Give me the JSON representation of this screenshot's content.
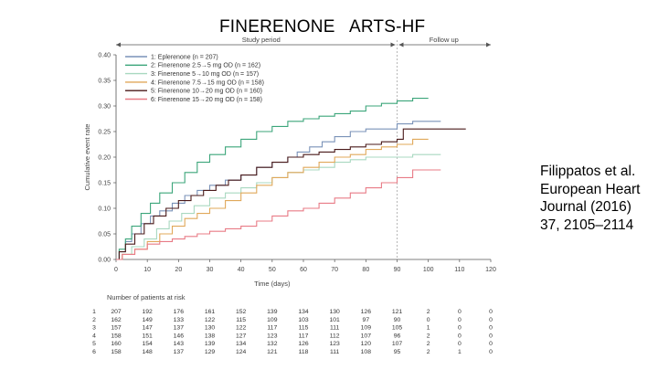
{
  "slide": {
    "title": "FINERENONE   ARTS-HF",
    "citation": [
      "Filippatos et al.",
      "European Heart",
      "Journal (2016)",
      "37, 2105–2114"
    ]
  },
  "chart_data": {
    "type": "line",
    "step": true,
    "title": "",
    "xlabel": "Time (days)",
    "ylabel": "Cumulative event rate",
    "xlim": [
      0,
      120
    ],
    "ylim": [
      0,
      0.4
    ],
    "xticks": [
      0,
      10,
      20,
      30,
      40,
      50,
      60,
      70,
      80,
      90,
      100,
      110,
      120
    ],
    "yticks": [
      "0.00",
      "0.05",
      "0.10",
      "0.15",
      "0.20",
      "0.25",
      "0.30",
      "0.35",
      "0.40"
    ],
    "periods": {
      "study": "Study period",
      "follow": "Follow up",
      "boundary_day": 90
    },
    "series": [
      {
        "name": "1: Eplerenone (n = 207)",
        "color": "#7a92b8",
        "points": [
          [
            0,
            0
          ],
          [
            1,
            0.015
          ],
          [
            3,
            0.035
          ],
          [
            5,
            0.05
          ],
          [
            8,
            0.07
          ],
          [
            11,
            0.085
          ],
          [
            14,
            0.095
          ],
          [
            18,
            0.11
          ],
          [
            22,
            0.125
          ],
          [
            26,
            0.135
          ],
          [
            30,
            0.145
          ],
          [
            35,
            0.155
          ],
          [
            40,
            0.165
          ],
          [
            45,
            0.18
          ],
          [
            50,
            0.19
          ],
          [
            55,
            0.2
          ],
          [
            58,
            0.21
          ],
          [
            62,
            0.22
          ],
          [
            66,
            0.23
          ],
          [
            70,
            0.24
          ],
          [
            75,
            0.25
          ],
          [
            80,
            0.255
          ],
          [
            85,
            0.255
          ],
          [
            90,
            0.265
          ],
          [
            95,
            0.27
          ],
          [
            104,
            0.27
          ]
        ]
      },
      {
        "name": "2: Finerenone 2.5→5 mg OD (n = 162)",
        "color": "#3ba57a",
        "points": [
          [
            0,
            0
          ],
          [
            1,
            0.02
          ],
          [
            3,
            0.04
          ],
          [
            5,
            0.065
          ],
          [
            8,
            0.09
          ],
          [
            11,
            0.11
          ],
          [
            14,
            0.13
          ],
          [
            18,
            0.15
          ],
          [
            22,
            0.17
          ],
          [
            26,
            0.19
          ],
          [
            30,
            0.205
          ],
          [
            35,
            0.22
          ],
          [
            40,
            0.235
          ],
          [
            45,
            0.25
          ],
          [
            50,
            0.26
          ],
          [
            55,
            0.27
          ],
          [
            60,
            0.275
          ],
          [
            65,
            0.28
          ],
          [
            70,
            0.285
          ],
          [
            75,
            0.29
          ],
          [
            80,
            0.3
          ],
          [
            85,
            0.305
          ],
          [
            90,
            0.31
          ],
          [
            95,
            0.315
          ],
          [
            100,
            0.315
          ]
        ]
      },
      {
        "name": "3: Finerenone 5→10 mg OD (n = 157)",
        "color": "#a8d8c0",
        "points": [
          [
            0,
            0
          ],
          [
            2,
            0.01
          ],
          [
            5,
            0.025
          ],
          [
            9,
            0.04
          ],
          [
            13,
            0.06
          ],
          [
            17,
            0.075
          ],
          [
            21,
            0.09
          ],
          [
            25,
            0.105
          ],
          [
            30,
            0.12
          ],
          [
            35,
            0.13
          ],
          [
            40,
            0.14
          ],
          [
            45,
            0.15
          ],
          [
            50,
            0.16
          ],
          [
            55,
            0.17
          ],
          [
            60,
            0.175
          ],
          [
            65,
            0.18
          ],
          [
            70,
            0.19
          ],
          [
            75,
            0.195
          ],
          [
            80,
            0.2
          ],
          [
            85,
            0.2
          ],
          [
            90,
            0.2
          ],
          [
            95,
            0.205
          ],
          [
            104,
            0.205
          ]
        ]
      },
      {
        "name": "4: Finerenone 7.5→15 mg OD (n = 158)",
        "color": "#e0a85a",
        "points": [
          [
            0,
            0
          ],
          [
            2,
            0.01
          ],
          [
            6,
            0.02
          ],
          [
            10,
            0.035
          ],
          [
            14,
            0.05
          ],
          [
            18,
            0.065
          ],
          [
            22,
            0.08
          ],
          [
            26,
            0.09
          ],
          [
            30,
            0.1
          ],
          [
            35,
            0.115
          ],
          [
            40,
            0.13
          ],
          [
            45,
            0.145
          ],
          [
            50,
            0.16
          ],
          [
            55,
            0.17
          ],
          [
            60,
            0.18
          ],
          [
            65,
            0.19
          ],
          [
            70,
            0.2
          ],
          [
            75,
            0.205
          ],
          [
            80,
            0.215
          ],
          [
            85,
            0.22
          ],
          [
            90,
            0.225
          ],
          [
            95,
            0.235
          ],
          [
            100,
            0.235
          ]
        ]
      },
      {
        "name": "5: Finerenone 10→20 mg OD (n = 160)",
        "color": "#4a1a1a",
        "points": [
          [
            0,
            0
          ],
          [
            1,
            0.015
          ],
          [
            3,
            0.03
          ],
          [
            6,
            0.05
          ],
          [
            9,
            0.07
          ],
          [
            12,
            0.085
          ],
          [
            16,
            0.1
          ],
          [
            20,
            0.115
          ],
          [
            24,
            0.125
          ],
          [
            28,
            0.135
          ],
          [
            32,
            0.145
          ],
          [
            36,
            0.155
          ],
          [
            40,
            0.165
          ],
          [
            45,
            0.18
          ],
          [
            50,
            0.19
          ],
          [
            55,
            0.2
          ],
          [
            60,
            0.205
          ],
          [
            65,
            0.21
          ],
          [
            70,
            0.215
          ],
          [
            75,
            0.22
          ],
          [
            80,
            0.225
          ],
          [
            85,
            0.23
          ],
          [
            90,
            0.235
          ],
          [
            92,
            0.255
          ],
          [
            112,
            0.255
          ]
        ]
      },
      {
        "name": "6: Finerenone 15→20 mg OD (n = 158)",
        "color": "#e87b86",
        "points": [
          [
            0,
            0
          ],
          [
            2,
            0.01
          ],
          [
            6,
            0.02
          ],
          [
            10,
            0.03
          ],
          [
            14,
            0.035
          ],
          [
            18,
            0.04
          ],
          [
            22,
            0.045
          ],
          [
            26,
            0.05
          ],
          [
            30,
            0.055
          ],
          [
            35,
            0.06
          ],
          [
            40,
            0.065
          ],
          [
            45,
            0.075
          ],
          [
            50,
            0.085
          ],
          [
            55,
            0.095
          ],
          [
            60,
            0.1
          ],
          [
            65,
            0.11
          ],
          [
            70,
            0.12
          ],
          [
            75,
            0.13
          ],
          [
            80,
            0.14
          ],
          [
            85,
            0.15
          ],
          [
            90,
            0.16
          ],
          [
            95,
            0.175
          ],
          [
            104,
            0.175
          ]
        ]
      }
    ],
    "risk_table": {
      "title": "Number of patients at risk",
      "times": [
        0,
        10,
        20,
        30,
        40,
        50,
        60,
        70,
        80,
        90,
        100,
        110,
        120
      ],
      "rows": [
        {
          "label": "1",
          "values": [
            "207",
            "192",
            "176",
            "161",
            "152",
            "139",
            "134",
            "130",
            "126",
            "121",
            "2",
            "0",
            "0"
          ]
        },
        {
          "label": "2",
          "values": [
            "162",
            "149",
            "133",
            "122",
            "115",
            "109",
            "103",
            "101",
            "97",
            "90",
            "0",
            "0",
            "0"
          ]
        },
        {
          "label": "3",
          "values": [
            "157",
            "147",
            "137",
            "130",
            "122",
            "117",
            "115",
            "111",
            "109",
            "105",
            "1",
            "0",
            "0"
          ]
        },
        {
          "label": "4",
          "values": [
            "158",
            "151",
            "146",
            "138",
            "127",
            "123",
            "117",
            "112",
            "107",
            "96",
            "2",
            "0",
            "0"
          ]
        },
        {
          "label": "5",
          "values": [
            "160",
            "154",
            "143",
            "139",
            "134",
            "132",
            "126",
            "123",
            "120",
            "107",
            "2",
            "0",
            "0"
          ]
        },
        {
          "label": "6",
          "values": [
            "158",
            "148",
            "137",
            "129",
            "124",
            "121",
            "118",
            "111",
            "108",
            "95",
            "2",
            "1",
            "0"
          ]
        }
      ]
    }
  }
}
